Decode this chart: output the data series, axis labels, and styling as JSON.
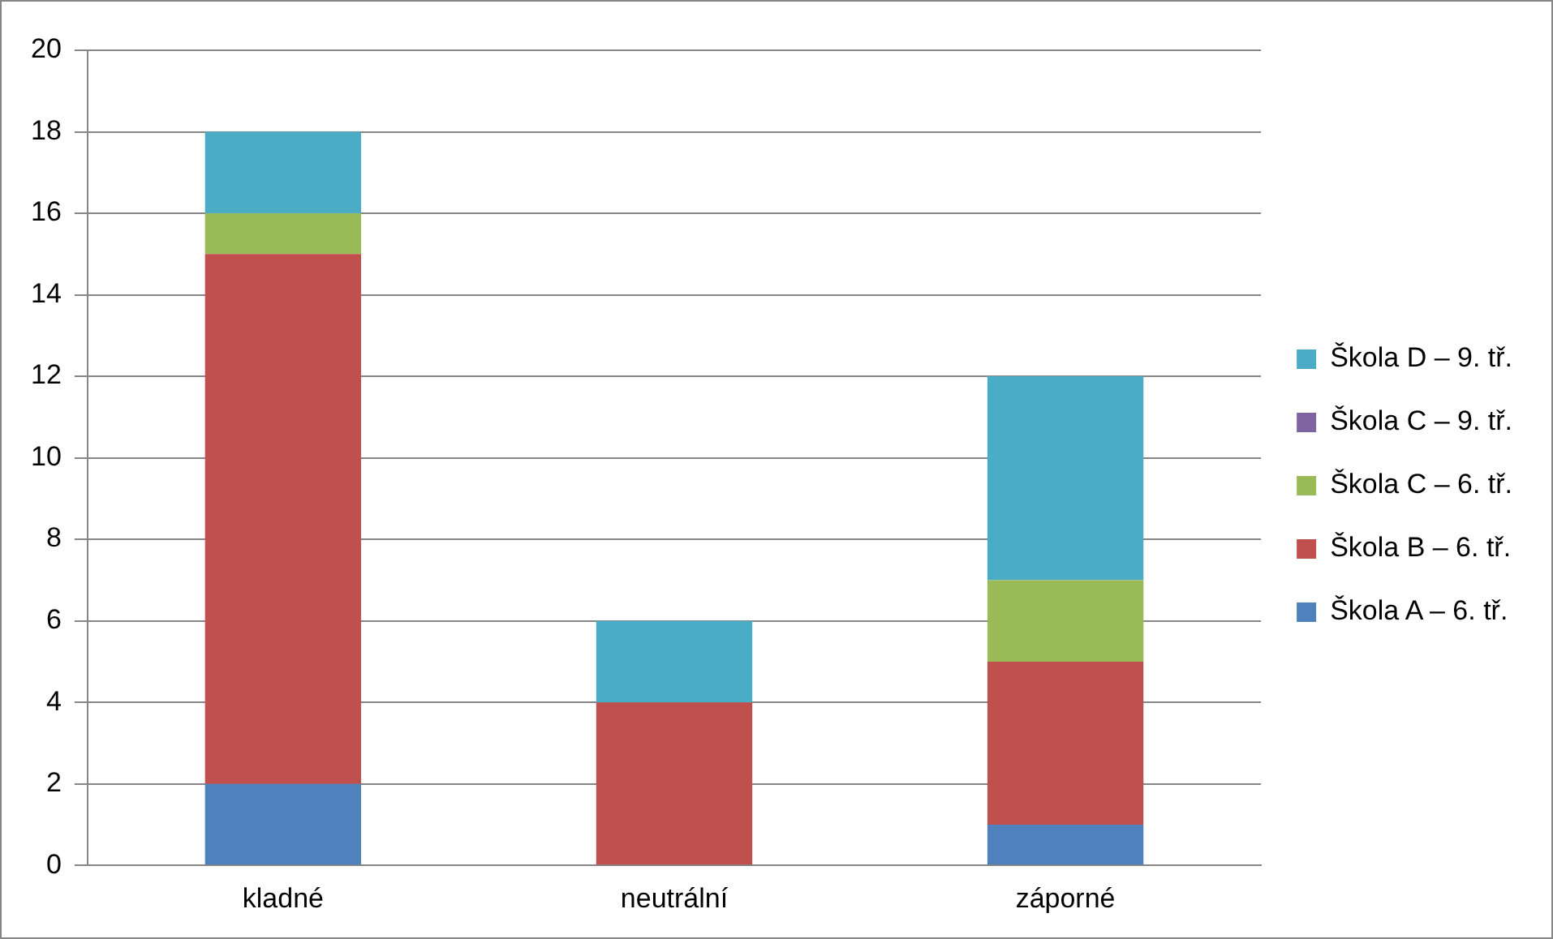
{
  "chart_data": {
    "type": "bar",
    "stacked": true,
    "categories": [
      "kladné",
      "neutrální",
      "záporné"
    ],
    "series": [
      {
        "name": "Škola A – 6. tř.",
        "color": "#4f81bd",
        "values": [
          2,
          0,
          1
        ]
      },
      {
        "name": "Škola B – 6. tř.",
        "color": "#c0504d",
        "values": [
          13,
          4,
          4
        ]
      },
      {
        "name": "Škola C – 6. tř.",
        "color": "#9bbb59",
        "values": [
          1,
          0,
          2
        ]
      },
      {
        "name": "Škola C – 9. tř.",
        "color": "#8064a2",
        "values": [
          0,
          0,
          0
        ]
      },
      {
        "name": "Škola D – 9. tř.",
        "color": "#4bacc6",
        "values": [
          2,
          2,
          5
        ]
      }
    ],
    "ylim": [
      0,
      20
    ],
    "yticks": [
      0,
      2,
      4,
      6,
      8,
      10,
      12,
      14,
      16,
      18,
      20
    ],
    "grid": "y",
    "legend": "right"
  }
}
